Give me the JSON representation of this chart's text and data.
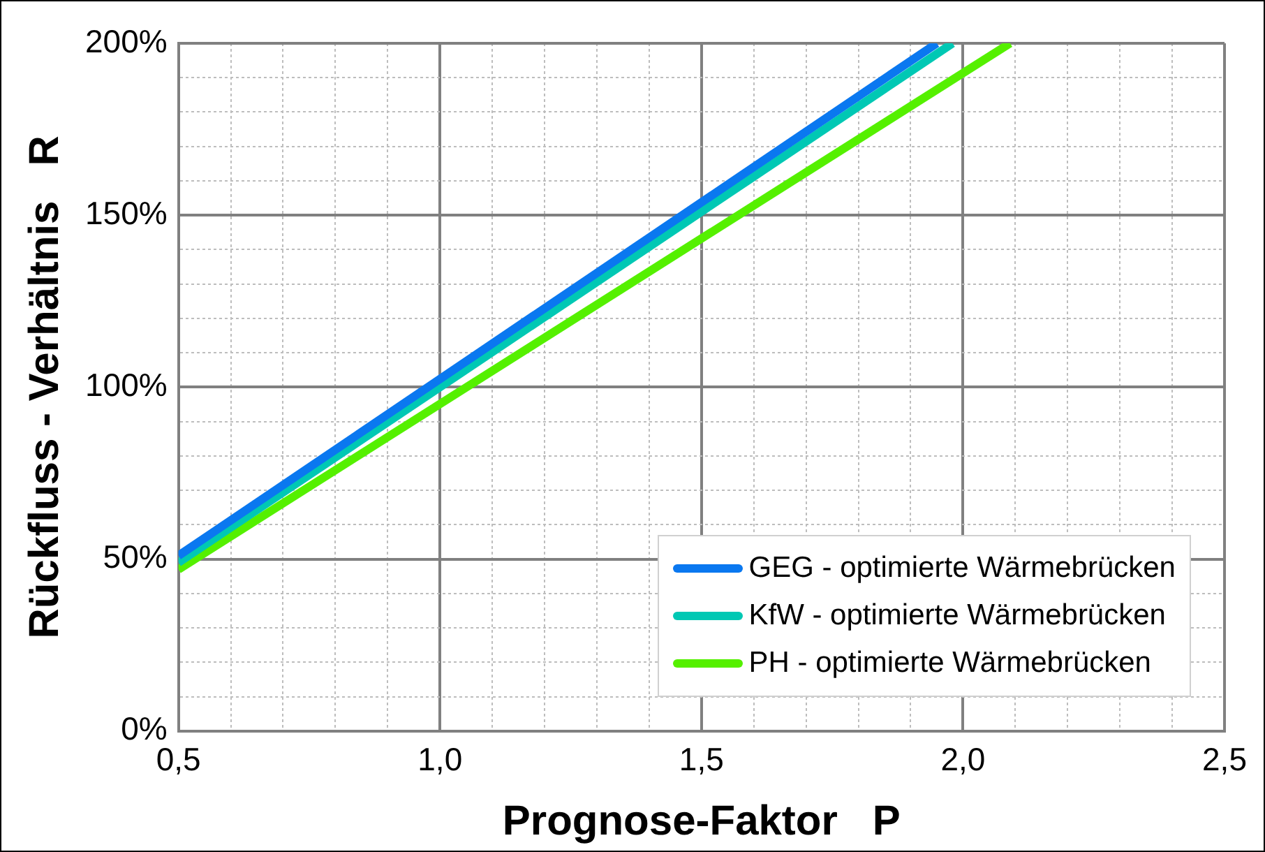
{
  "chart_data": {
    "type": "line",
    "xlabel": "Prognose-Faktor   P",
    "ylabel": "Rückfluss - Verhältnis   R",
    "series": [
      {
        "name": "GEG - optimierte Wärmebrücken",
        "color": "#0a78f0",
        "x": [
          0.5,
          1.95
        ],
        "values": [
          51,
          200
        ]
      },
      {
        "name": "KfW - optimierte Wärmebrücken",
        "color": "#00c8b4",
        "x": [
          0.5,
          1.98
        ],
        "values": [
          49,
          200
        ]
      },
      {
        "name": "PH - optimierte Wärmebrücken",
        "color": "#55f000",
        "x": [
          0.5,
          2.09
        ],
        "values": [
          47,
          200
        ]
      }
    ],
    "xlim": [
      0.5,
      2.5
    ],
    "xticks": [
      {
        "value": 0.5,
        "label": "0,5"
      },
      {
        "value": 0.6,
        "label": null
      },
      {
        "value": 0.7,
        "label": null
      },
      {
        "value": 0.8,
        "label": null
      },
      {
        "value": 0.9,
        "label": null
      },
      {
        "value": 1.0,
        "label": "1,0"
      },
      {
        "value": 1.1,
        "label": null
      },
      {
        "value": 1.2,
        "label": null
      },
      {
        "value": 1.3,
        "label": null
      },
      {
        "value": 1.4,
        "label": null
      },
      {
        "value": 1.5,
        "label": "1,5"
      },
      {
        "value": 1.6,
        "label": null
      },
      {
        "value": 1.7,
        "label": null
      },
      {
        "value": 1.8,
        "label": null
      },
      {
        "value": 1.9,
        "label": null
      },
      {
        "value": 2.0,
        "label": "2,0"
      },
      {
        "value": 2.1,
        "label": null
      },
      {
        "value": 2.2,
        "label": null
      },
      {
        "value": 2.3,
        "label": null
      },
      {
        "value": 2.4,
        "label": null
      },
      {
        "value": 2.5,
        "label": "2,5"
      }
    ],
    "ylim": [
      0,
      200
    ],
    "yticks": [
      {
        "value": 0,
        "label": "0%"
      },
      {
        "value": 10,
        "label": null
      },
      {
        "value": 20,
        "label": null
      },
      {
        "value": 30,
        "label": null
      },
      {
        "value": 40,
        "label": null
      },
      {
        "value": 50,
        "label": "50%"
      },
      {
        "value": 60,
        "label": null
      },
      {
        "value": 70,
        "label": null
      },
      {
        "value": 80,
        "label": null
      },
      {
        "value": 90,
        "label": null
      },
      {
        "value": 100,
        "label": "100%"
      },
      {
        "value": 110,
        "label": null
      },
      {
        "value": 120,
        "label": null
      },
      {
        "value": 130,
        "label": null
      },
      {
        "value": 140,
        "label": null
      },
      {
        "value": 150,
        "label": "150%"
      },
      {
        "value": 160,
        "label": null
      },
      {
        "value": 170,
        "label": null
      },
      {
        "value": 180,
        "label": null
      },
      {
        "value": 190,
        "label": null
      },
      {
        "value": 200,
        "label": "200%"
      }
    ],
    "grid": true,
    "legend": "bottom right",
    "marker": "none",
    "line_style": "solid"
  }
}
